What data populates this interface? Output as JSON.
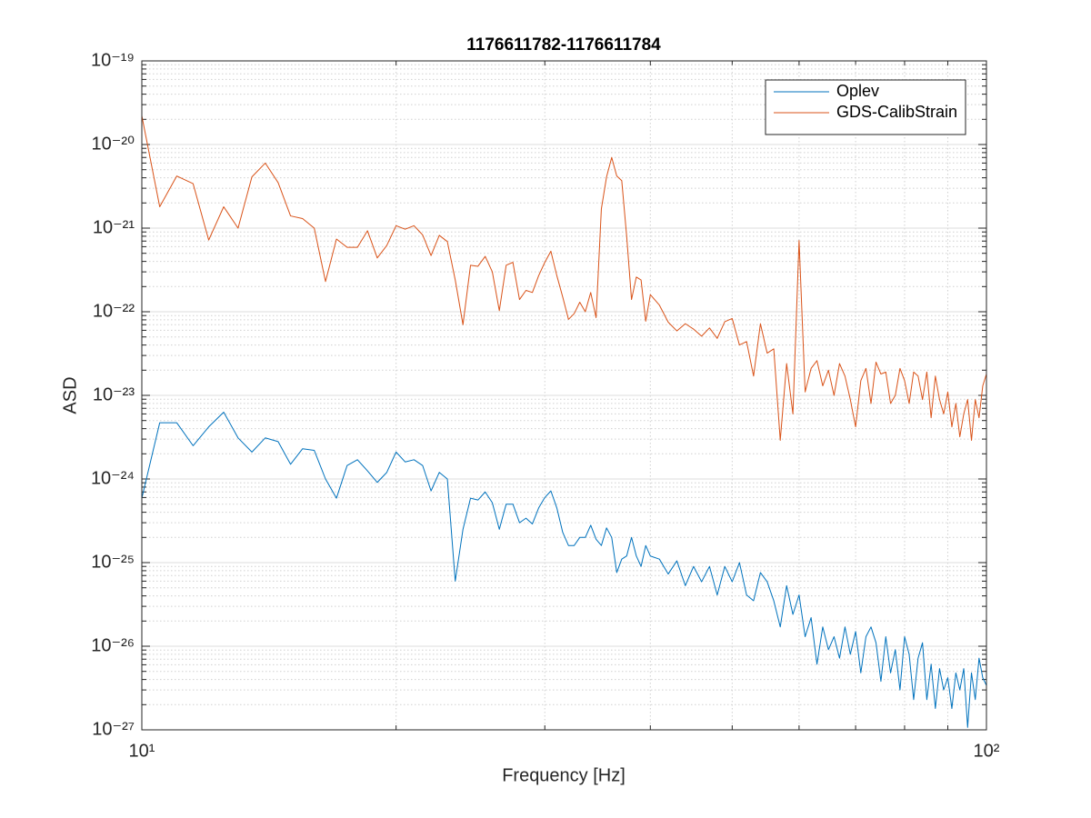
{
  "chart_data": {
    "type": "line",
    "title": "1176611782-1176611784",
    "xlabel": "Frequency [Hz]",
    "ylabel": "ASD",
    "xscale": "log",
    "yscale": "log",
    "grid": true,
    "minor_grid": true,
    "legend": "top-right",
    "xlim": [
      10,
      100
    ],
    "ylim": [
      1e-27,
      1e-19
    ],
    "xticks": [
      {
        "value": 10,
        "label": "10¹"
      },
      {
        "value": 100,
        "label": "10²"
      }
    ],
    "yticks": [
      {
        "value": 1e-27,
        "label": "10⁻²⁷"
      },
      {
        "value": 1e-26,
        "label": "10⁻²⁶"
      },
      {
        "value": 1e-25,
        "label": "10⁻²⁵"
      },
      {
        "value": 1e-24,
        "label": "10⁻²⁴"
      },
      {
        "value": 1e-23,
        "label": "10⁻²³"
      },
      {
        "value": 1e-22,
        "label": "10⁻²²"
      },
      {
        "value": 1e-21,
        "label": "10⁻²¹"
      },
      {
        "value": 1e-20,
        "label": "10⁻²⁰"
      },
      {
        "value": 1e-19,
        "label": "10⁻¹⁹"
      }
    ],
    "x": [
      10,
      10.5,
      11,
      11.5,
      12,
      12.5,
      13,
      13.5,
      14,
      14.5,
      15,
      15.5,
      16,
      16.5,
      17,
      17.5,
      18,
      18.5,
      19,
      19.5,
      20,
      20.5,
      21,
      21.5,
      22,
      22.5,
      23,
      23.5,
      24,
      24.5,
      25,
      25.5,
      26,
      26.5,
      27,
      27.5,
      28,
      28.5,
      29,
      29.5,
      30,
      30.5,
      31,
      31.5,
      32,
      32.5,
      33,
      33.5,
      34,
      34.5,
      35,
      35.5,
      36,
      36.5,
      37,
      37.5,
      38,
      38.5,
      39,
      39.5,
      40,
      41,
      42,
      43,
      44,
      45,
      46,
      47,
      48,
      49,
      50,
      51,
      52,
      53,
      54,
      55,
      56,
      57,
      58,
      59,
      60,
      61,
      62,
      63,
      64,
      65,
      66,
      67,
      68,
      69,
      70,
      71,
      72,
      73,
      74,
      75,
      76,
      77,
      78,
      79,
      80,
      81,
      82,
      83,
      84,
      85,
      86,
      87,
      88,
      89,
      90,
      91,
      92,
      93,
      94,
      95,
      96,
      97,
      98,
      99,
      100
    ],
    "series": [
      {
        "name": "Oplev",
        "color": "#0072BD",
        "values": [
          5.9e-25,
          4.7e-24,
          4.7e-24,
          2.5e-24,
          4.2e-24,
          6.3e-24,
          3.1e-24,
          2.1e-24,
          3.1e-24,
          2.8e-24,
          1.5e-24,
          2.3e-24,
          2.2e-24,
          1e-24,
          5.9e-25,
          1.45e-24,
          1.7e-24,
          1.25e-24,
          9.1e-25,
          1.2e-24,
          2.1e-24,
          1.6e-24,
          1.7e-24,
          1.45e-24,
          7.2e-25,
          1.2e-24,
          1e-24,
          6e-26,
          2.5e-25,
          5.9e-25,
          5.6e-25,
          7e-25,
          5.2e-25,
          2.5e-25,
          5e-25,
          5e-25,
          3e-25,
          3.4e-25,
          2.9e-25,
          4.5e-25,
          6e-25,
          7.2e-25,
          4.5e-25,
          2.3e-25,
          1.6e-25,
          1.6e-25,
          2e-25,
          2e-25,
          2.8e-25,
          1.9e-25,
          1.6e-25,
          2.6e-25,
          2e-25,
          7.6e-26,
          1.1e-25,
          1.2e-25,
          2e-25,
          1.2e-25,
          9e-26,
          1.6e-25,
          1.2e-25,
          1.1e-25,
          7.3e-26,
          1.05e-25,
          5.3e-26,
          9e-26,
          5.9e-26,
          9e-26,
          4.1e-26,
          9e-26,
          5.9e-26,
          1e-25,
          4.1e-26,
          3.5e-26,
          7.6e-26,
          5.9e-26,
          3.5e-26,
          1.7e-26,
          5.3e-26,
          2.4e-26,
          4.1e-26,
          1.3e-26,
          2.2e-26,
          6.1e-27,
          1.7e-26,
          9.1e-27,
          1.3e-26,
          7.2e-27,
          1.7e-26,
          8e-27,
          1.5e-26,
          4.8e-27,
          1.3e-26,
          1.7e-26,
          1.1e-26,
          3.8e-27,
          1.3e-26,
          4.8e-27,
          9.1e-27,
          3e-27,
          1.3e-26,
          8e-27,
          2.3e-27,
          7.2e-27,
          1.1e-26,
          2.3e-27,
          6.1e-27,
          1.8e-27,
          5.4e-27,
          3e-27,
          4.2e-27,
          1.8e-27,
          4.8e-27,
          3e-27,
          5.4e-27,
          1.07e-27,
          4.8e-27,
          2.3e-27,
          7.2e-27,
          4.2e-27,
          3.4e-27
        ]
      },
      {
        "name": "GDS-CalibStrain",
        "color": "#D95319",
        "values": [
          2.2e-20,
          1.8e-21,
          4.2e-21,
          3.4e-21,
          7.2e-22,
          1.8e-21,
          1e-21,
          4.1e-21,
          6e-21,
          3.5e-21,
          1.4e-21,
          1.3e-21,
          1e-21,
          2.3e-22,
          7.4e-22,
          5.9e-22,
          5.9e-22,
          9.3e-22,
          4.4e-22,
          6.2e-22,
          1.07e-21,
          9.7e-22,
          1.07e-21,
          8.3e-22,
          4.7e-22,
          8.2e-22,
          6.9e-22,
          2.4e-22,
          7e-23,
          3.6e-22,
          3.5e-22,
          4.6e-22,
          3e-22,
          1.03e-22,
          3.6e-22,
          3.9e-22,
          1.4e-22,
          1.8e-22,
          1.7e-22,
          2.7e-22,
          3.9e-22,
          5.3e-22,
          2.7e-22,
          1.5e-22,
          8.1e-23,
          9.5e-23,
          1.3e-22,
          1e-22,
          1.7e-22,
          8.5e-23,
          1.7e-21,
          4.1e-21,
          7e-21,
          4.2e-21,
          3.7e-21,
          8e-22,
          1.4e-22,
          2.6e-22,
          2.4e-22,
          7.7e-23,
          1.6e-22,
          1.2e-22,
          7.5e-23,
          5.9e-23,
          7.2e-23,
          6.2e-23,
          5.1e-23,
          6.4e-23,
          4.8e-23,
          7.6e-23,
          8.3e-23,
          4e-23,
          4.4e-23,
          1.7e-23,
          7.2e-23,
          3.2e-23,
          3.6e-23,
          2.9e-24,
          2.4e-23,
          6e-24,
          7.1e-22,
          1.1e-23,
          2.1e-23,
          2.6e-23,
          1.3e-23,
          2e-23,
          1e-23,
          2.4e-23,
          1.7e-23,
          8.9e-24,
          4.2e-24,
          1.5e-23,
          2.1e-23,
          8e-24,
          2.5e-23,
          1.8e-23,
          1.9e-23,
          8e-24,
          1e-23,
          2.1e-23,
          1.5e-23,
          8e-24,
          1.9e-23,
          1.7e-23,
          8.9e-24,
          1.9e-23,
          5.4e-24,
          1.7e-23,
          8.9e-24,
          6e-24,
          1.1e-23,
          4.2e-24,
          8e-24,
          3.2e-24,
          6e-24,
          8.9e-24,
          2.9e-24,
          8.9e-24,
          5.4e-24,
          1.3e-23,
          1.8e-23
        ]
      }
    ]
  }
}
